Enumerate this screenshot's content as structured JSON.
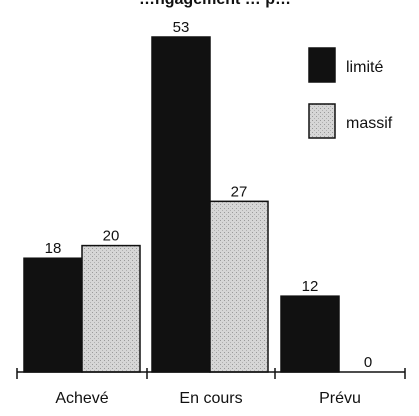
{
  "chart_data": {
    "type": "bar",
    "title": "…ngagement … p…",
    "categories": [
      "Achevé",
      "En cours",
      "Prévu"
    ],
    "series": [
      {
        "name": "limité",
        "values": [
          18,
          53,
          12
        ],
        "color": "#111111",
        "pattern": "solid"
      },
      {
        "name": "massif",
        "values": [
          20,
          27,
          0
        ],
        "color": "#d4d4d4",
        "pattern": "stipple"
      }
    ],
    "ylim": [
      0,
      53
    ],
    "show_value_labels": true,
    "legend": "top-right",
    "grid": false,
    "y_axis_visible": false
  }
}
